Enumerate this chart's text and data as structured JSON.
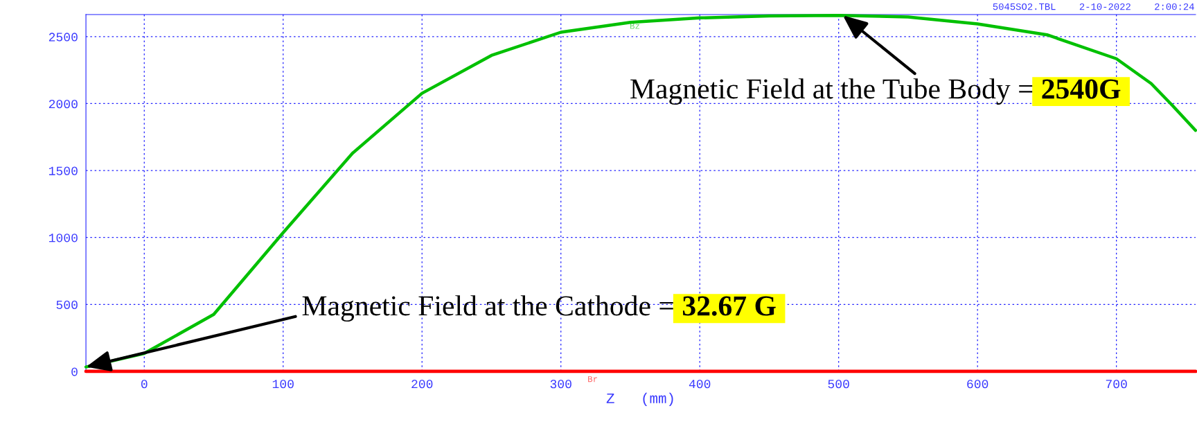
{
  "chart_data": {
    "type": "line",
    "xlabel": "Z   (mm)",
    "x": [
      -42,
      0,
      50,
      100,
      150,
      200,
      250,
      300,
      350,
      400,
      450,
      500,
      550,
      600,
      650,
      700,
      725,
      740,
      757
    ],
    "series": [
      {
        "name": "Bz",
        "color": "#00c000",
        "values": [
          33,
          134,
          425,
          1036,
          1630,
          2077,
          2360,
          2533,
          2607,
          2640,
          2655,
          2659,
          2647,
          2595,
          2514,
          2335,
          2150,
          1990,
          1800
        ]
      },
      {
        "name": "Br",
        "color": "#ff0000",
        "x": [
          -42,
          757
        ],
        "values": [
          0,
          0
        ]
      }
    ],
    "xlim": [
      -42,
      757
    ],
    "ylim": [
      0,
      2665
    ],
    "xticks": [
      0,
      100,
      200,
      300,
      400,
      500,
      600,
      700
    ],
    "yticks": [
      0,
      500,
      1000,
      1500,
      2000,
      2500
    ],
    "grid": true,
    "legend": false,
    "marker": "none",
    "line_style": "solid",
    "annotations": [
      {
        "text": "Magnetic Field at the Cathode =",
        "x": -42,
        "y": 33
      },
      "32.67 G",
      {
        "text": "Magnetic Field at the Tube Body =",
        "x": 503,
        "y": 2659
      },
      "2540G",
      "5045SO2.TBL    2-10-2022    2:00:24"
    ]
  }
}
